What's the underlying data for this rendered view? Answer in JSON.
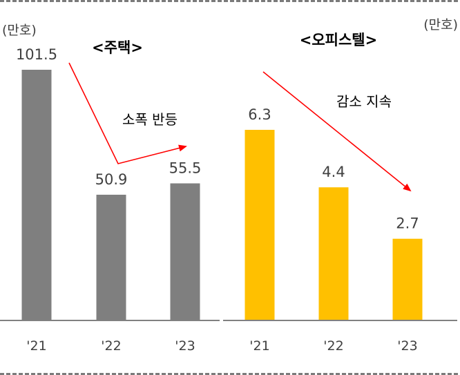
{
  "chart_data": [
    {
      "type": "bar",
      "title": "<주택>",
      "unit_label": "(만호)",
      "categories": [
        "'21",
        "'22",
        "'23"
      ],
      "values": [
        101.5,
        50.9,
        55.5
      ],
      "value_labels": [
        "101.5",
        "50.9",
        "55.5"
      ],
      "color": "#7f7f7f",
      "annotation": "소폭 반등",
      "ylim": [
        0,
        101.5
      ]
    },
    {
      "type": "bar",
      "title": "<오피스텔>",
      "unit_label": "(만호)",
      "categories": [
        "'21",
        "'22",
        "'23"
      ],
      "values": [
        6.3,
        4.4,
        2.7
      ],
      "value_labels": [
        "6.3",
        "4.4",
        "2.7"
      ],
      "color": "#ffc000",
      "annotation": "감소 지속",
      "ylim": [
        0,
        6.3
      ]
    }
  ],
  "colors": {
    "arrow": "#ff0000",
    "axis": "#808080",
    "text": "#404040"
  }
}
